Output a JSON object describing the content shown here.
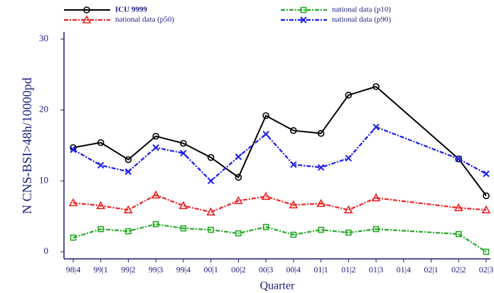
{
  "chart_data": {
    "type": "line",
    "xlabel": "Quarter",
    "ylabel": "N CNS-BSI>48h/10000pd",
    "categories": [
      "98|4",
      "99|1",
      "99|2",
      "99|3",
      "99|4",
      "00|1",
      "00|2",
      "00|3",
      "00|4",
      "01|1",
      "01|2",
      "01|3",
      "01|4",
      "02|1",
      "02|2",
      "02|3"
    ],
    "ylim": [
      -1,
      31
    ],
    "yticks": [
      0,
      10,
      20,
      30
    ],
    "series": [
      {
        "name": "ICU 9999",
        "color": "#000000",
        "marker": "circle",
        "dash": "solid",
        "values": [
          14.7,
          15.4,
          13.0,
          16.3,
          15.3,
          13.3,
          10.5,
          19.2,
          17.1,
          16.7,
          22.1,
          23.3,
          null,
          null,
          13.1,
          7.9
        ]
      },
      {
        "name": "national data (p10)",
        "color": "#22aa22",
        "marker": "square",
        "dash": "dashdot",
        "values": [
          2.0,
          3.2,
          2.9,
          3.9,
          3.3,
          3.1,
          2.6,
          3.5,
          2.4,
          3.1,
          2.7,
          3.2,
          null,
          null,
          2.5,
          0.0
        ]
      },
      {
        "name": "national data (p50)",
        "color": "#ee2222",
        "marker": "triangle",
        "dash": "dashdot",
        "values": [
          6.9,
          6.5,
          5.9,
          8.0,
          6.5,
          5.6,
          7.2,
          7.8,
          6.6,
          6.8,
          5.9,
          7.6,
          null,
          null,
          6.2,
          5.9
        ]
      },
      {
        "name": "national data (p90)",
        "color": "#1a1aee",
        "marker": "x",
        "dash": "dashdot",
        "values": [
          14.4,
          12.2,
          11.3,
          14.7,
          13.9,
          10.0,
          13.4,
          16.6,
          12.3,
          11.9,
          13.2,
          17.6,
          null,
          null,
          13.1,
          11.0
        ]
      }
    ]
  }
}
